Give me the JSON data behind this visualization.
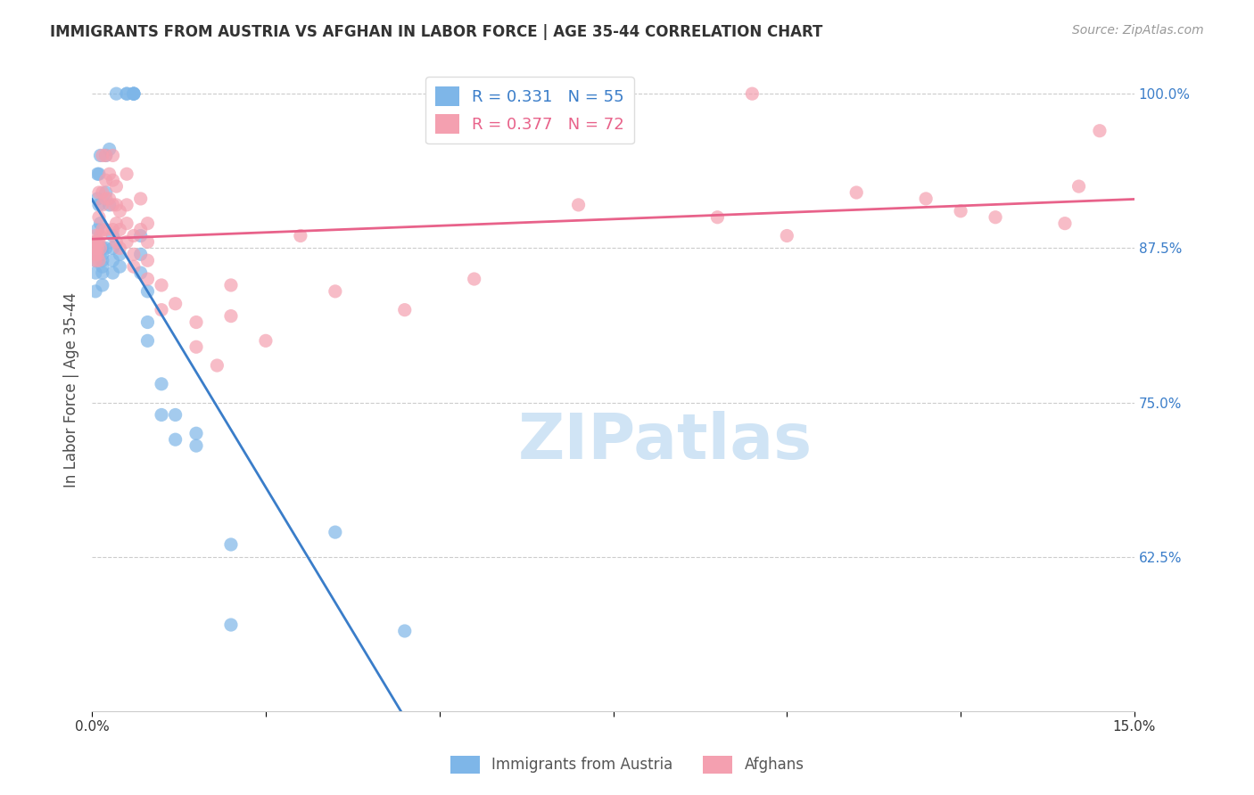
{
  "title": "IMMIGRANTS FROM AUSTRIA VS AFGHAN IN LABOR FORCE | AGE 35-44 CORRELATION CHART",
  "source": "Source: ZipAtlas.com",
  "xlabel": "",
  "ylabel": "In Labor Force | Age 35-44",
  "xlim": [
    0.0,
    15.0
  ],
  "ylim": [
    50.0,
    102.0
  ],
  "yticks": [
    62.5,
    75.0,
    87.5,
    100.0
  ],
  "xticks": [
    0.0,
    2.5,
    5.0,
    7.5,
    10.0,
    12.5,
    15.0
  ],
  "xtick_labels": [
    "0.0%",
    "",
    "",
    "",
    "",
    "",
    "15.0%"
  ],
  "ytick_labels": [
    "62.5%",
    "75.0%",
    "87.5%",
    "100.0%"
  ],
  "austria_r": 0.331,
  "austria_n": 55,
  "afghan_r": 0.377,
  "afghan_n": 72,
  "austria_color": "#7eb6e8",
  "afghan_color": "#f4a0b0",
  "austria_line_color": "#3a7dc9",
  "afghan_line_color": "#e8628a",
  "legend_austria": "Immigrants from Austria",
  "legend_afghan": "Afghans",
  "austria_x": [
    0.05,
    0.05,
    0.05,
    0.05,
    0.05,
    0.05,
    0.08,
    0.08,
    0.08,
    0.08,
    0.1,
    0.1,
    0.1,
    0.12,
    0.12,
    0.15,
    0.15,
    0.15,
    0.15,
    0.15,
    0.15,
    0.2,
    0.2,
    0.2,
    0.25,
    0.25,
    0.3,
    0.3,
    0.3,
    0.3,
    0.35,
    0.4,
    0.4,
    0.5,
    0.5,
    0.6,
    0.6,
    0.6,
    0.6,
    0.7,
    0.7,
    0.7,
    0.8,
    0.8,
    0.8,
    1.0,
    1.0,
    1.2,
    1.2,
    1.5,
    1.5,
    2.0,
    2.0,
    3.5,
    4.5
  ],
  "austria_y": [
    87.0,
    87.5,
    88.0,
    86.5,
    85.5,
    84.0,
    93.5,
    91.5,
    89.0,
    87.0,
    93.5,
    91.0,
    87.5,
    95.0,
    89.5,
    87.5,
    87.0,
    86.5,
    86.0,
    85.5,
    84.5,
    95.0,
    92.0,
    87.5,
    95.5,
    91.0,
    88.5,
    87.5,
    86.5,
    85.5,
    100.0,
    87.0,
    86.0,
    100.0,
    100.0,
    100.0,
    100.0,
    100.0,
    100.0,
    88.5,
    87.0,
    85.5,
    84.0,
    81.5,
    80.0,
    76.5,
    74.0,
    74.0,
    72.0,
    72.5,
    71.5,
    63.5,
    57.0,
    64.5,
    56.5
  ],
  "afghan_x": [
    0.05,
    0.05,
    0.05,
    0.05,
    0.05,
    0.08,
    0.08,
    0.08,
    0.1,
    0.1,
    0.1,
    0.1,
    0.12,
    0.12,
    0.15,
    0.15,
    0.15,
    0.15,
    0.2,
    0.2,
    0.2,
    0.2,
    0.25,
    0.25,
    0.3,
    0.3,
    0.3,
    0.3,
    0.35,
    0.35,
    0.35,
    0.35,
    0.4,
    0.4,
    0.4,
    0.5,
    0.5,
    0.5,
    0.5,
    0.6,
    0.6,
    0.6,
    0.7,
    0.7,
    0.8,
    0.8,
    0.8,
    0.8,
    1.0,
    1.0,
    1.2,
    1.5,
    1.5,
    1.8,
    2.0,
    2.0,
    2.5,
    3.0,
    3.5,
    4.5,
    5.5,
    7.0,
    9.0,
    9.5,
    10.0,
    11.0,
    12.0,
    12.5,
    13.0,
    14.0,
    14.2,
    14.5
  ],
  "afghan_y": [
    88.5,
    88.0,
    87.5,
    87.0,
    86.5,
    88.0,
    87.5,
    87.0,
    92.0,
    90.0,
    88.0,
    86.5,
    88.5,
    87.5,
    95.0,
    92.0,
    91.0,
    89.0,
    95.0,
    93.0,
    91.5,
    89.0,
    93.5,
    91.5,
    95.0,
    93.0,
    91.0,
    89.0,
    92.5,
    91.0,
    89.5,
    88.0,
    90.5,
    89.0,
    87.5,
    93.5,
    91.0,
    89.5,
    88.0,
    88.5,
    87.0,
    86.0,
    91.5,
    89.0,
    89.5,
    88.0,
    86.5,
    85.0,
    84.5,
    82.5,
    83.0,
    81.5,
    79.5,
    78.0,
    84.5,
    82.0,
    80.0,
    88.5,
    84.0,
    82.5,
    85.0,
    91.0,
    90.0,
    100.0,
    88.5,
    92.0,
    91.5,
    90.5,
    90.0,
    89.5,
    92.5,
    97.0
  ],
  "background_color": "#ffffff",
  "grid_color": "#cccccc",
  "title_color": "#333333",
  "axis_label_color": "#4d4d4d",
  "tick_color_right": "#3a7dc9",
  "watermark_text": "ZIPatlas",
  "watermark_color": "#d0e4f5"
}
